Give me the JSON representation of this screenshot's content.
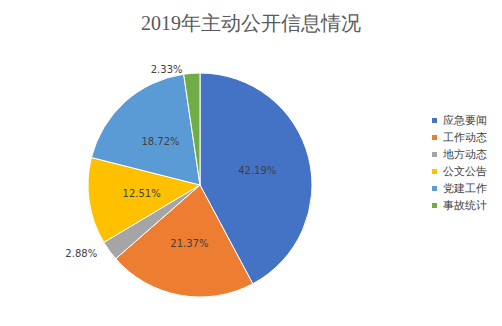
{
  "chart_data": {
    "type": "pie",
    "title": "2019年主动公开信息情况",
    "categories": [
      "应急要闻",
      "工作动态",
      "地方动态",
      "公文公告",
      "党建工作",
      "事故统计"
    ],
    "values": [
      42.19,
      21.37,
      2.88,
      12.51,
      18.72,
      2.33
    ],
    "value_labels": [
      "42.19%",
      "21.37%",
      "2.88%",
      "12.51%",
      "18.72%",
      "2.33%"
    ],
    "colors": [
      "#4472c4",
      "#ed7d31",
      "#a5a5a5",
      "#ffc000",
      "#5b9bd5",
      "#70ad47"
    ],
    "data_labels": true,
    "legend": "right"
  }
}
